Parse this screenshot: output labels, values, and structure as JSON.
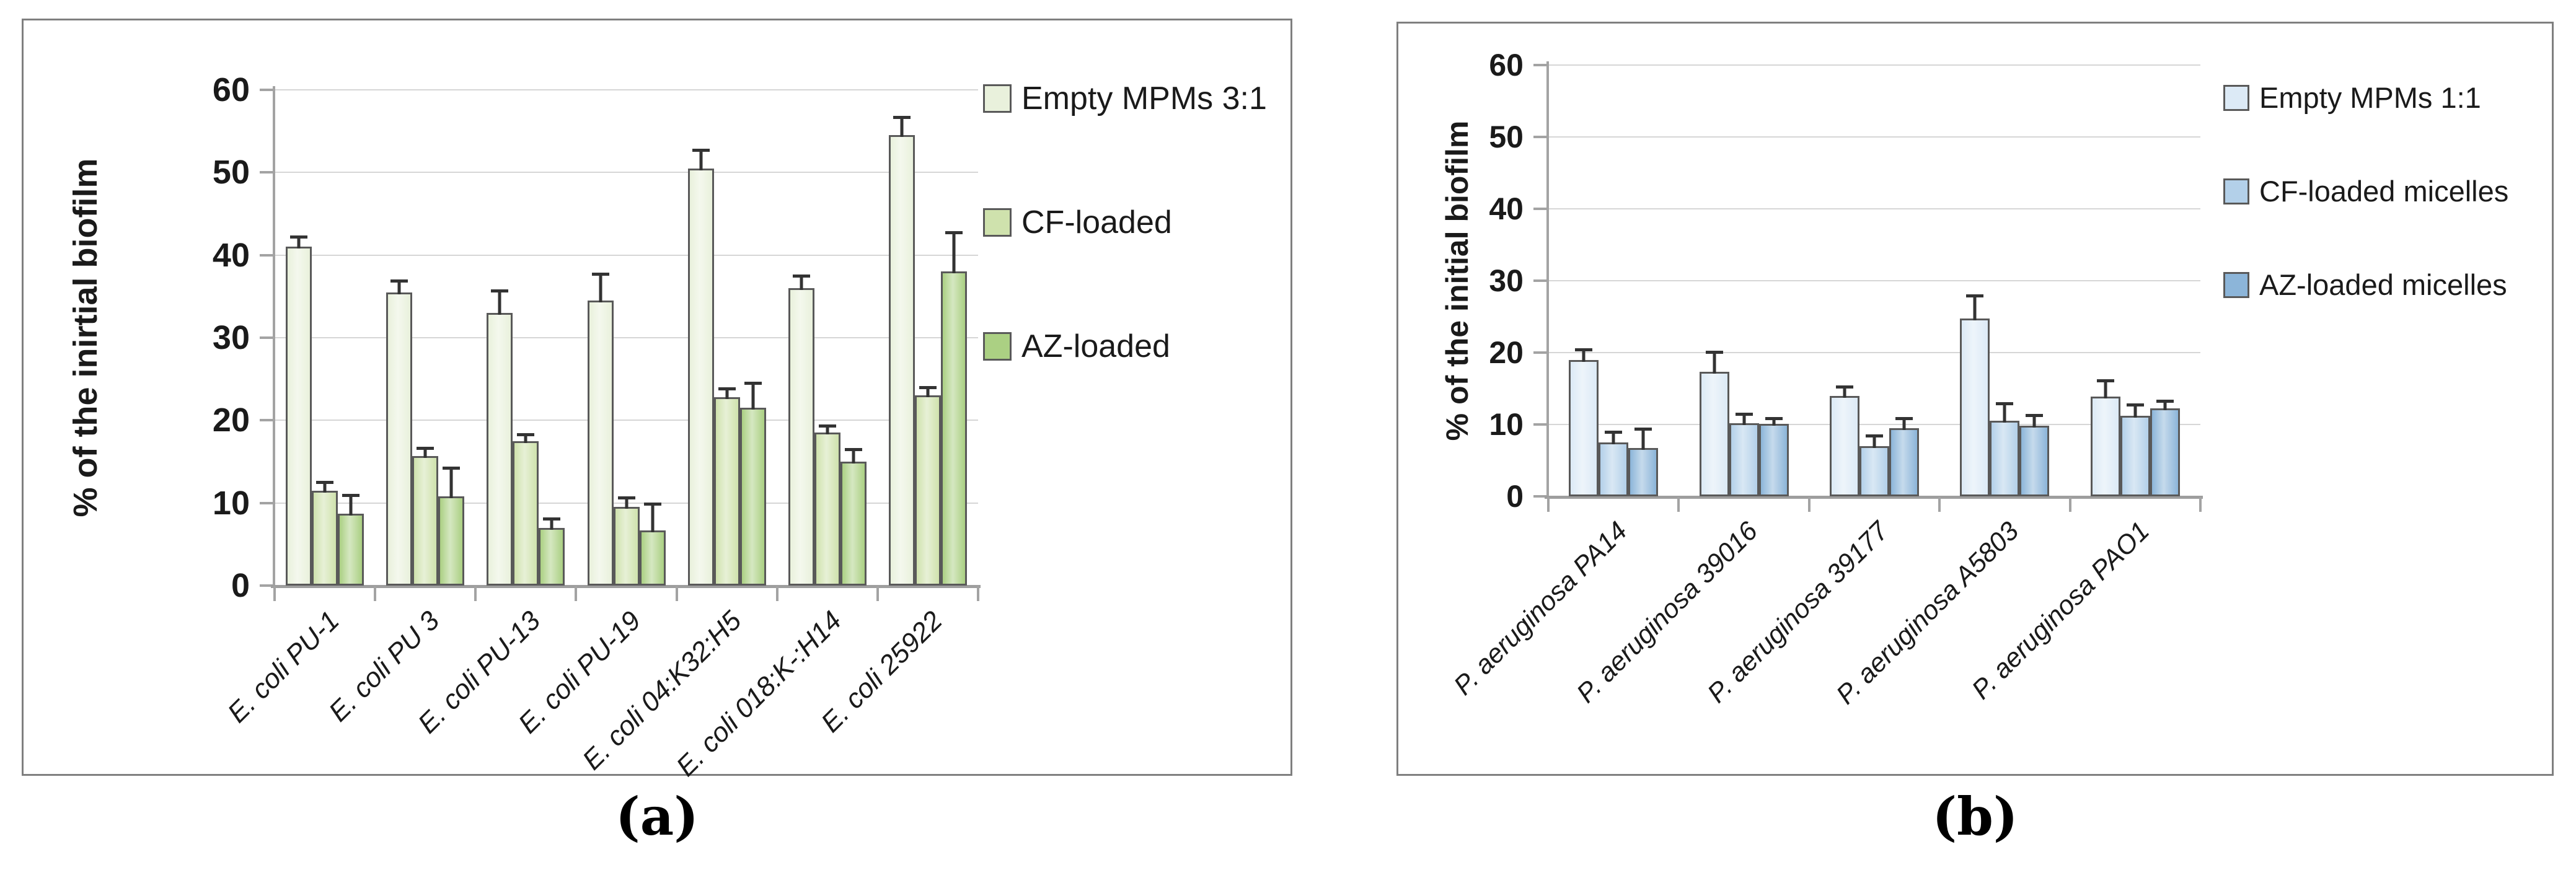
{
  "figure": {
    "captions": {
      "a": "(a)",
      "b": "(b)"
    }
  },
  "chart_data": [
    {
      "type": "bar",
      "panel": "a",
      "title": "",
      "xlabel": "",
      "ylabel": "% of the inirtial biofilm",
      "ylim": [
        0,
        60
      ],
      "yticks": [
        0,
        10,
        20,
        30,
        40,
        50,
        60
      ],
      "grid": true,
      "legend_position": "right",
      "axis_color": "#a3a3a3",
      "gridline_color": "#d6d6d6",
      "bar_border_color": "#595959",
      "error_bar_color": "#333333",
      "categories": [
        "E. coli PU-1",
        "E. coli PU 3",
        "E. coli PU-13",
        "E. coli PU-19",
        "E. coli 04:K32:H5",
        "E. coli 018:K-:H14",
        "E. coli 25922"
      ],
      "series": [
        {
          "name": "Empty MPMs 3:1",
          "color": "#e9f1dc",
          "values": [
            41,
            35.5,
            33,
            34.5,
            50.5,
            36,
            54.5
          ],
          "errors": [
            1,
            1.2,
            2.5,
            3,
            2,
            1.3,
            2
          ]
        },
        {
          "name": "CF-loaded",
          "color": "#cfe2ad",
          "values": [
            11.5,
            15.7,
            17.5,
            9.5,
            22.8,
            18.5,
            23
          ],
          "errors": [
            0.8,
            0.7,
            0.6,
            0.9,
            0.8,
            0.6,
            0.8
          ]
        },
        {
          "name": "AZ-loaded",
          "color": "#abd083",
          "values": [
            8.7,
            10.8,
            7,
            6.7,
            21.5,
            15,
            38
          ],
          "errors": [
            2,
            3.2,
            0.9,
            3,
            2.8,
            1.3,
            4.5
          ]
        }
      ]
    },
    {
      "type": "bar",
      "panel": "b",
      "title": "",
      "xlabel": "",
      "ylabel": "% of the initial biofilm",
      "ylim": [
        0,
        60
      ],
      "yticks": [
        0,
        10,
        20,
        30,
        40,
        50,
        60
      ],
      "grid": true,
      "legend_position": "right",
      "axis_color": "#a3a3a3",
      "gridline_color": "#d6d6d6",
      "bar_border_color": "#595959",
      "error_bar_color": "#333333",
      "categories": [
        "P. aeruginosa PA14",
        "P. aeruginosa 39016",
        "P. aeruginosa 39177",
        "P. aeruginosa A5803",
        "P. aeruginosa PAO1"
      ],
      "series": [
        {
          "name": "Empty MPMs 1:1",
          "color": "#dceaf6",
          "values": [
            19,
            17.3,
            14,
            24.7,
            13.9
          ],
          "errors": [
            1.2,
            2.5,
            1,
            3,
            2
          ]
        },
        {
          "name": "CF-loaded micelles",
          "color": "#b3d0e9",
          "values": [
            7.5,
            10.2,
            7,
            10.5,
            11.2
          ],
          "errors": [
            1.2,
            1,
            1.2,
            2.2,
            1.3
          ]
        },
        {
          "name": "AZ-loaded micelles",
          "color": "#8cb5d9",
          "values": [
            6.7,
            10.1,
            9.5,
            9.8,
            12.2
          ],
          "errors": [
            2.4,
            0.5,
            1.1,
            1.2,
            0.8
          ]
        }
      ]
    }
  ]
}
